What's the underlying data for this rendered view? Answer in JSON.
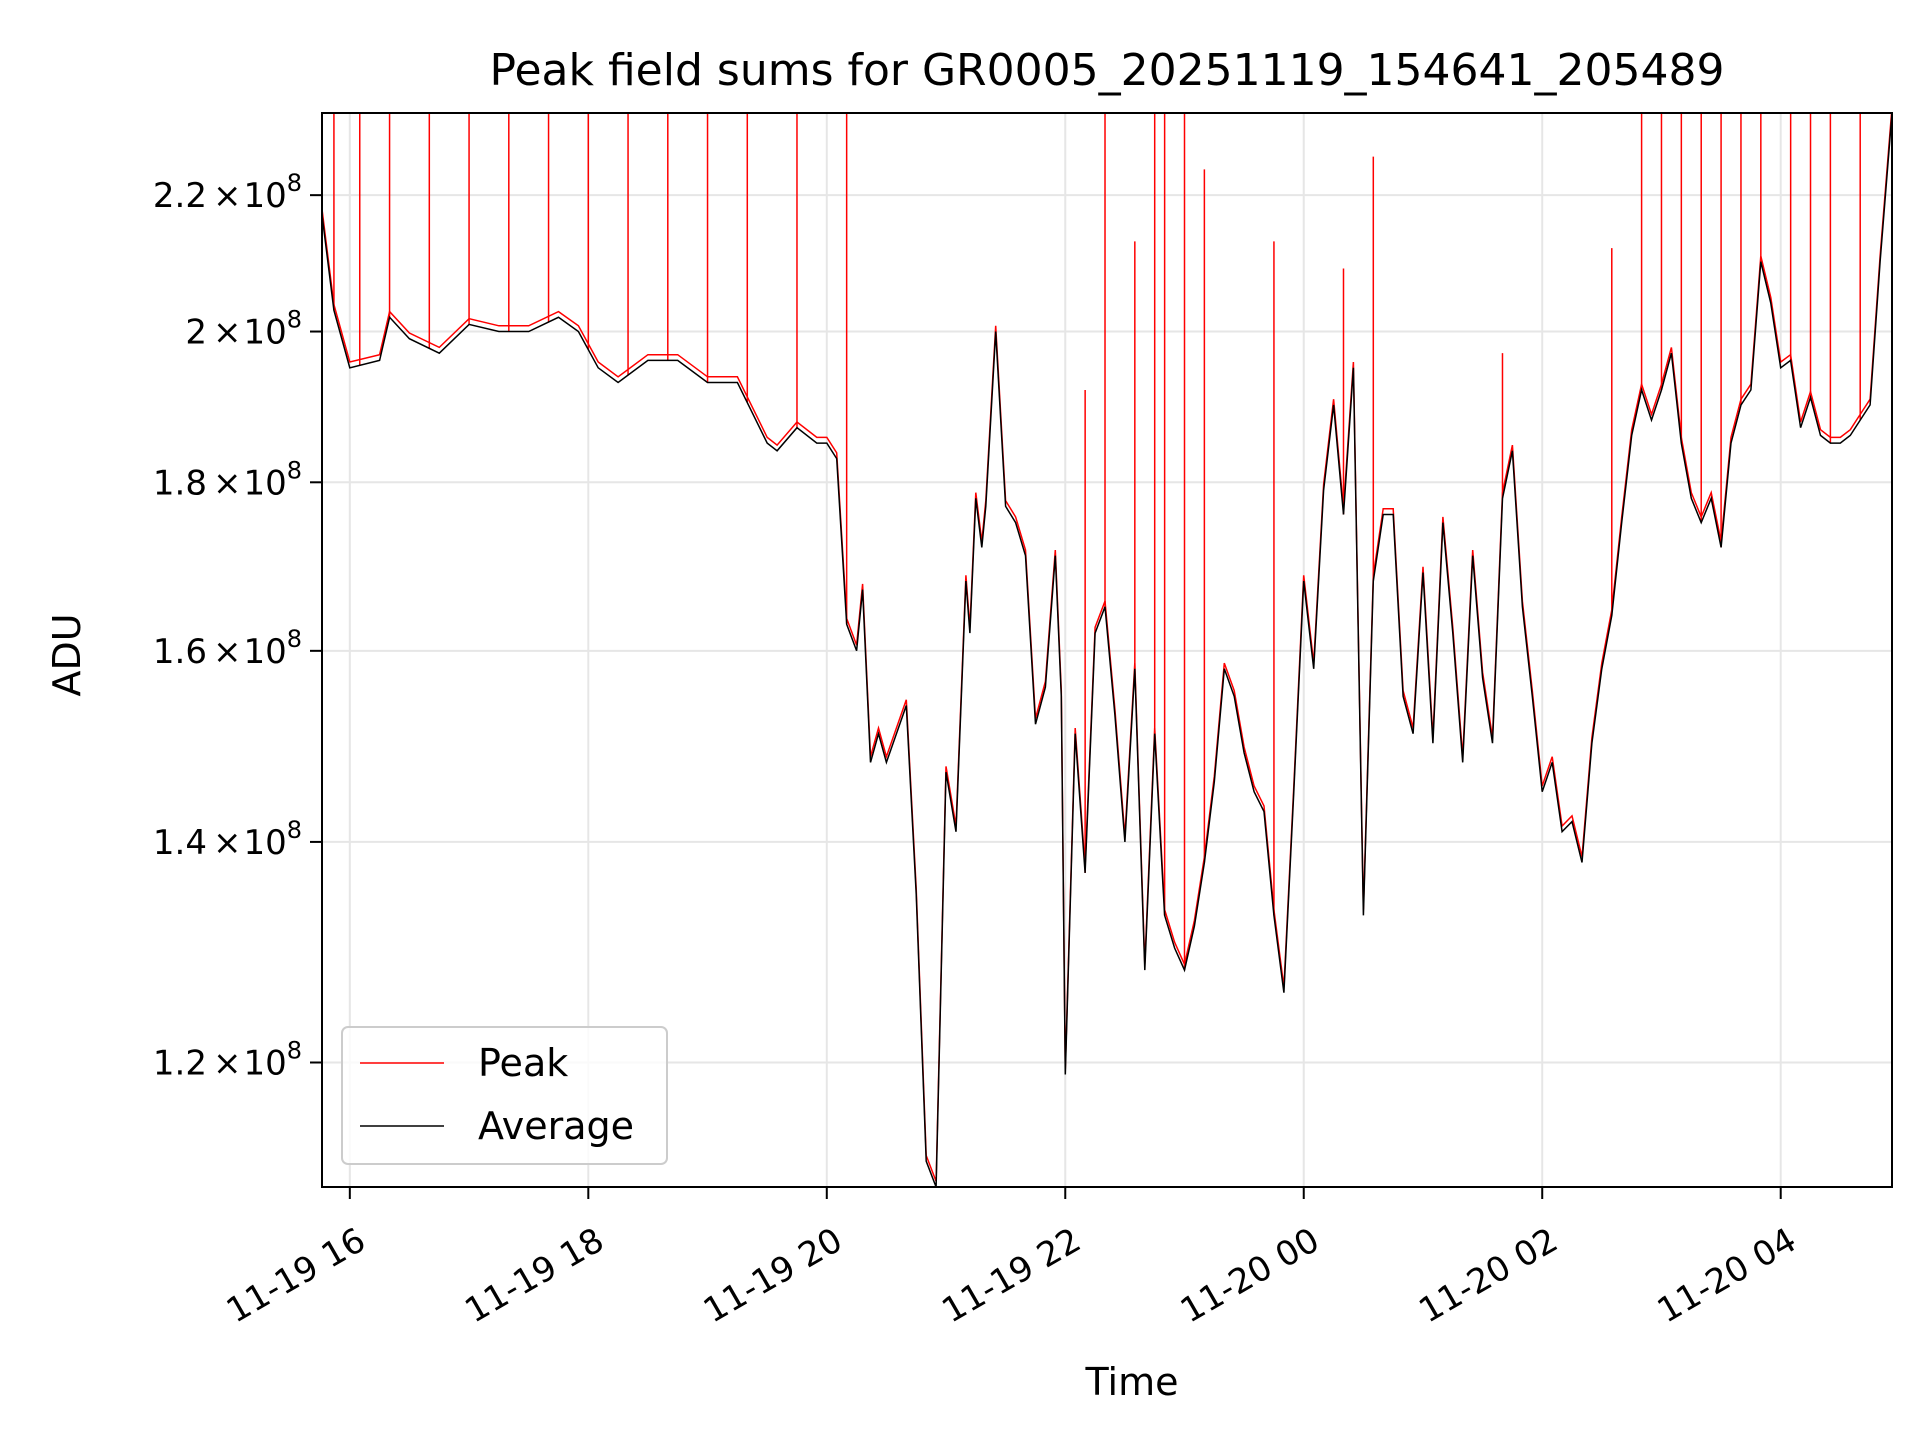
{
  "chart_data": {
    "type": "line",
    "title": "Peak field sums for GR0005_20251119_154641_205489",
    "xlabel": "Time",
    "ylabel": "ADU",
    "x_range": [
      "2025-11-19 15:46",
      "2025-11-20 04:56"
    ],
    "y_range": [
      110000000,
      233000000
    ],
    "y_scale": "log",
    "grid": true,
    "legend_placement": "lower left",
    "x_tick_labels": [
      "11-19 16",
      "11-19 18",
      "11-19 20",
      "11-19 22",
      "11-20 00",
      "11-20 02",
      "11-20 04"
    ],
    "x_tick_values": [
      "2025-11-19 16:00",
      "2025-11-19 18:00",
      "2025-11-19 20:00",
      "2025-11-19 22:00",
      "2025-11-20 00:00",
      "2025-11-20 02:00",
      "2025-11-20 04:00"
    ],
    "y_tick_values": [
      120000000,
      140000000,
      160000000,
      180000000,
      200000000,
      220000000
    ],
    "y_tick_labels": [
      {
        "mantissa": "1.2",
        "times": "×",
        "base": "10",
        "exp": "8"
      },
      {
        "mantissa": "1.4",
        "times": "×",
        "base": "10",
        "exp": "8"
      },
      {
        "mantissa": "1.6",
        "times": "×",
        "base": "10",
        "exp": "8"
      },
      {
        "mantissa": "1.8",
        "times": "×",
        "base": "10",
        "exp": "8"
      },
      {
        "mantissa": "2",
        "times": "×",
        "base": "10",
        "exp": "8"
      },
      {
        "mantissa": "2.2",
        "times": "×",
        "base": "10",
        "exp": "8"
      }
    ],
    "series": [
      {
        "name": "Average",
        "color": "#000000",
        "x": [
          "2025-11-19 15:46",
          "2025-11-19 15:52",
          "2025-11-19 16:00",
          "2025-11-19 16:15",
          "2025-11-19 16:20",
          "2025-11-19 16:30",
          "2025-11-19 16:45",
          "2025-11-19 17:00",
          "2025-11-19 17:15",
          "2025-11-19 17:30",
          "2025-11-19 17:45",
          "2025-11-19 17:55",
          "2025-11-19 18:05",
          "2025-11-19 18:15",
          "2025-11-19 18:30",
          "2025-11-19 18:45",
          "2025-11-19 19:00",
          "2025-11-19 19:15",
          "2025-11-19 19:30",
          "2025-11-19 19:35",
          "2025-11-19 19:45",
          "2025-11-19 19:55",
          "2025-11-19 20:00",
          "2025-11-19 20:05",
          "2025-11-19 20:10",
          "2025-11-19 20:15",
          "2025-11-19 20:18",
          "2025-11-19 20:22",
          "2025-11-19 20:26",
          "2025-11-19 20:30",
          "2025-11-19 20:40",
          "2025-11-19 20:45",
          "2025-11-19 20:50",
          "2025-11-19 20:55",
          "2025-11-19 21:00",
          "2025-11-19 21:05",
          "2025-11-19 21:10",
          "2025-11-19 21:12",
          "2025-11-19 21:15",
          "2025-11-19 21:18",
          "2025-11-19 21:20",
          "2025-11-19 21:25",
          "2025-11-19 21:30",
          "2025-11-19 21:35",
          "2025-11-19 21:40",
          "2025-11-19 21:45",
          "2025-11-19 21:50",
          "2025-11-19 21:55",
          "2025-11-19 21:58",
          "2025-11-19 22:00",
          "2025-11-19 22:05",
          "2025-11-19 22:10",
          "2025-11-19 22:15",
          "2025-11-19 22:20",
          "2025-11-19 22:25",
          "2025-11-19 22:30",
          "2025-11-19 22:35",
          "2025-11-19 22:40",
          "2025-11-19 22:45",
          "2025-11-19 22:50",
          "2025-11-19 22:55",
          "2025-11-19 23:00",
          "2025-11-19 23:05",
          "2025-11-19 23:10",
          "2025-11-19 23:15",
          "2025-11-19 23:20",
          "2025-11-19 23:25",
          "2025-11-19 23:30",
          "2025-11-19 23:35",
          "2025-11-19 23:40",
          "2025-11-19 23:45",
          "2025-11-19 23:50",
          "2025-11-19 23:55",
          "2025-11-20 00:00",
          "2025-11-20 00:05",
          "2025-11-20 00:10",
          "2025-11-20 00:15",
          "2025-11-20 00:20",
          "2025-11-20 00:25",
          "2025-11-20 00:30",
          "2025-11-20 00:35",
          "2025-11-20 00:40",
          "2025-11-20 00:45",
          "2025-11-20 00:50",
          "2025-11-20 00:55",
          "2025-11-20 01:00",
          "2025-11-20 01:05",
          "2025-11-20 01:10",
          "2025-11-20 01:15",
          "2025-11-20 01:20",
          "2025-11-20 01:25",
          "2025-11-20 01:30",
          "2025-11-20 01:35",
          "2025-11-20 01:40",
          "2025-11-20 01:45",
          "2025-11-20 01:50",
          "2025-11-20 01:55",
          "2025-11-20 02:00",
          "2025-11-20 02:05",
          "2025-11-20 02:10",
          "2025-11-20 02:15",
          "2025-11-20 02:20",
          "2025-11-20 02:25",
          "2025-11-20 02:30",
          "2025-11-20 02:35",
          "2025-11-20 02:40",
          "2025-11-20 02:45",
          "2025-11-20 02:50",
          "2025-11-20 02:55",
          "2025-11-20 03:00",
          "2025-11-20 03:05",
          "2025-11-20 03:10",
          "2025-11-20 03:15",
          "2025-11-20 03:20",
          "2025-11-20 03:25",
          "2025-11-20 03:30",
          "2025-11-20 03:35",
          "2025-11-20 03:40",
          "2025-11-20 03:45",
          "2025-11-20 03:50",
          "2025-11-20 03:55",
          "2025-11-20 04:00",
          "2025-11-20 04:05",
          "2025-11-20 04:10",
          "2025-11-20 04:15",
          "2025-11-20 04:20",
          "2025-11-20 04:25",
          "2025-11-20 04:30",
          "2025-11-20 04:35",
          "2025-11-20 04:40",
          "2025-11-20 04:45",
          "2025-11-20 04:50",
          "2025-11-20 04:56"
        ],
        "values": [
          217000000,
          203000000,
          195000000,
          196000000,
          202000000,
          199000000,
          197000000,
          201000000,
          200000000,
          200000000,
          202000000,
          200000000,
          195000000,
          193000000,
          196000000,
          196000000,
          193000000,
          193000000,
          185000000,
          184000000,
          187000000,
          185000000,
          185000000,
          183000000,
          163000000,
          160000000,
          167000000,
          148000000,
          151000000,
          148000000,
          154000000,
          135000000,
          112000000,
          110000000,
          147000000,
          141000000,
          168000000,
          162000000,
          178000000,
          172000000,
          177000000,
          200000000,
          177000000,
          175000000,
          171000000,
          152000000,
          156000000,
          171000000,
          155000000,
          119000000,
          151000000,
          137000000,
          162000000,
          165000000,
          153000000,
          140000000,
          158000000,
          128000000,
          151000000,
          133000000,
          130000000,
          128000000,
          132000000,
          138000000,
          146000000,
          158000000,
          155000000,
          149000000,
          145000000,
          143000000,
          133000000,
          126000000,
          145000000,
          168000000,
          158000000,
          179000000,
          190000000,
          176000000,
          195000000,
          133000000,
          168000000,
          176000000,
          176000000,
          155000000,
          151000000,
          169000000,
          150000000,
          175000000,
          162000000,
          148000000,
          171000000,
          157000000,
          150000000,
          178000000,
          184000000,
          165000000,
          155000000,
          145000000,
          148000000,
          141000000,
          142000000,
          138000000,
          150000000,
          158000000,
          164000000,
          175000000,
          186000000,
          192000000,
          188000000,
          192000000,
          197000000,
          185000000,
          178000000,
          175000000,
          178000000,
          172000000,
          185000000,
          190000000,
          192000000,
          210000000,
          204000000,
          195000000,
          196000000,
          187000000,
          191000000,
          186000000,
          185000000,
          185000000,
          186000000,
          188000000,
          190000000,
          210000000,
          233000000
        ]
      },
      {
        "name": "Peak",
        "color": "#ff0000",
        "x": [
          "2025-11-19 15:52",
          "2025-11-19 16:05",
          "2025-11-19 16:20",
          "2025-11-19 16:40",
          "2025-11-19 17:00",
          "2025-11-19 17:20",
          "2025-11-19 17:40",
          "2025-11-19 18:00",
          "2025-11-19 18:20",
          "2025-11-19 18:40",
          "2025-11-19 19:00",
          "2025-11-19 19:20",
          "2025-11-19 19:45",
          "2025-11-19 20:10",
          "2025-11-19 22:10",
          "2025-11-19 22:20",
          "2025-11-19 22:35",
          "2025-11-19 22:45",
          "2025-11-19 22:50",
          "2025-11-19 23:00",
          "2025-11-19 23:10",
          "2025-11-19 23:45",
          "2025-11-20 00:20",
          "2025-11-20 00:35",
          "2025-11-20 01:40",
          "2025-11-20 02:35",
          "2025-11-20 02:50",
          "2025-11-20 03:00",
          "2025-11-20 03:10",
          "2025-11-20 03:20",
          "2025-11-20 03:30",
          "2025-11-20 03:40",
          "2025-11-20 03:50",
          "2025-11-20 04:05",
          "2025-11-20 04:15",
          "2025-11-20 04:25",
          "2025-11-20 04:40"
        ],
        "values": [
          233000000,
          233000000,
          233000000,
          233000000,
          233000000,
          233000000,
          233000000,
          233000000,
          233000000,
          233000000,
          233000000,
          233000000,
          233000000,
          233000000,
          192000000,
          233000000,
          213000000,
          233000000,
          233000000,
          233000000,
          224000000,
          213000000,
          209000000,
          226000000,
          197000000,
          212000000,
          233000000,
          233000000,
          233000000,
          233000000,
          233000000,
          233000000,
          233000000,
          233000000,
          233000000,
          233000000,
          233000000
        ]
      }
    ]
  }
}
